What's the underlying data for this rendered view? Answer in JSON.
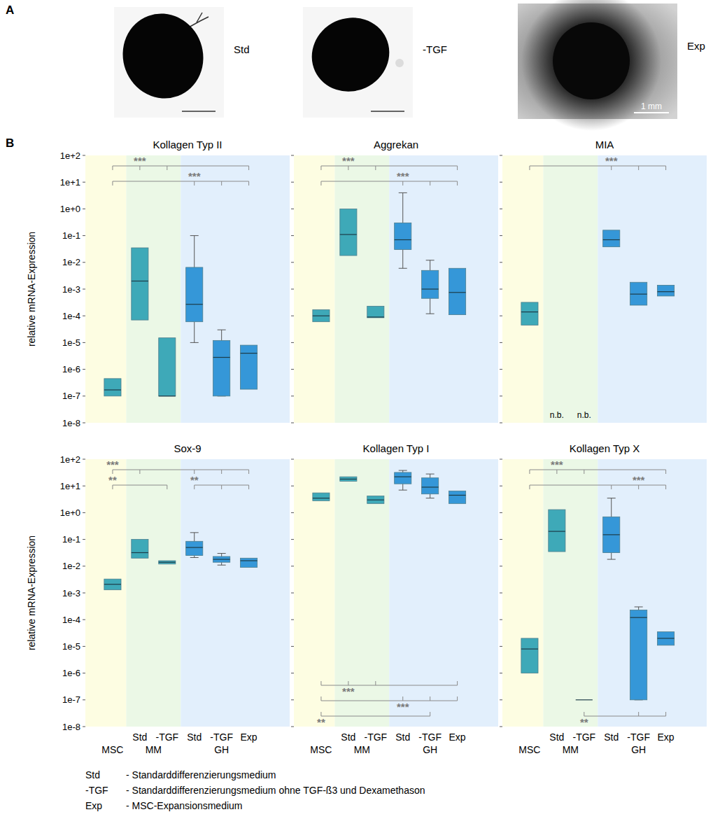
{
  "panel_a": {
    "label": "A",
    "images": [
      {
        "label": "Std"
      },
      {
        "label": "-TGF"
      },
      {
        "label": "Exp",
        "scale_bar": "1 mm"
      }
    ]
  },
  "panel_b_label": "B",
  "chart_data": [
    {
      "type": "box",
      "title": "Kollagen Typ II",
      "categories": [
        null,
        "Std",
        "-TGF",
        "Std",
        "-TGF",
        "Exp"
      ],
      "groups": [
        {
          "label": "MSC",
          "categories": [
            0
          ],
          "color": "#fdfde2"
        },
        {
          "label": "MM",
          "categories": [
            1,
            2
          ],
          "color": "#ebf8e6"
        },
        {
          "label": "GH",
          "categories": [
            3,
            4,
            5
          ],
          "color": "#e2effc"
        }
      ],
      "colors": [
        "#3ea9b8",
        "#3ea9b8",
        "#3ea9b8",
        "#3597d8",
        "#3597d8",
        "#3597d8"
      ],
      "boxes": [
        {
          "low": null,
          "q1": 1e-07,
          "median": 1.7e-07,
          "q3": 4.5e-07,
          "high": null
        },
        {
          "low": null,
          "q1": 7e-05,
          "median": 0.002,
          "q3": 0.035,
          "high": null
        },
        {
          "low": null,
          "q1": 1e-07,
          "median": 1e-07,
          "q3": 1.5e-05,
          "high": null
        },
        {
          "low": 1e-05,
          "q1": 6e-05,
          "median": 0.00027,
          "q3": 0.0065,
          "high": 0.1
        },
        {
          "low": 1e-07,
          "q1": 1e-07,
          "median": 2.8e-06,
          "q3": 1.2e-05,
          "high": 3e-05
        },
        {
          "low": null,
          "q1": 1.8e-07,
          "median": 4e-06,
          "q3": 8e-06,
          "high": null
        }
      ],
      "significance": [
        {
          "label": "***",
          "from": 0,
          "to": [
            1,
            2,
            5
          ],
          "label_at": 1,
          "side": "top"
        },
        {
          "label": "***",
          "from": 0,
          "to": [
            3,
            4,
            5
          ],
          "label_at": 3,
          "side": "top"
        }
      ],
      "log": "y",
      "grid": false,
      "tick_labels": "y",
      "ylabel": "relative mRNA-Expression",
      "ylim": [
        1e-08,
        100
      ],
      "yticks": [
        {
          "value": 1e-08,
          "label": "1e-8"
        },
        {
          "value": 1e-07,
          "label": "1e-7"
        },
        {
          "value": 1e-06,
          "label": "1e-6"
        },
        {
          "value": 1e-05,
          "label": "1e-5"
        },
        {
          "value": 0.0001,
          "label": "1e-4"
        },
        {
          "value": 0.001,
          "label": "1e-3"
        },
        {
          "value": 0.01,
          "label": "1e-2"
        },
        {
          "value": 0.1,
          "label": "1e-1"
        },
        {
          "value": 1,
          "label": "1e+0"
        },
        {
          "value": 10,
          "label": "1e+1"
        },
        {
          "value": 100,
          "label": "1e+2"
        }
      ]
    },
    {
      "type": "box",
      "title": "Aggrekan",
      "categories": [
        null,
        "Std",
        "-TGF",
        "Std",
        "-TGF",
        "Exp"
      ],
      "groups": [
        {
          "label": "MSC",
          "categories": [
            0
          ],
          "color": "#fdfde2"
        },
        {
          "label": "MM",
          "categories": [
            1,
            2
          ],
          "color": "#ebf8e6"
        },
        {
          "label": "GH",
          "categories": [
            3,
            4,
            5
          ],
          "color": "#e2effc"
        }
      ],
      "colors": [
        "#3ea9b8",
        "#3ea9b8",
        "#3ea9b8",
        "#3597d8",
        "#3597d8",
        "#3597d8"
      ],
      "boxes": [
        {
          "low": null,
          "q1": 6e-05,
          "median": 0.0001,
          "q3": 0.00017,
          "high": null
        },
        {
          "low": null,
          "q1": 0.018,
          "median": 0.11,
          "q3": 1,
          "high": null
        },
        {
          "low": null,
          "q1": 8.5e-05,
          "median": 9e-05,
          "q3": 0.00023,
          "high": null
        },
        {
          "low": 0.006,
          "q1": 0.03,
          "median": 0.07,
          "q3": 0.3,
          "high": 4
        },
        {
          "low": 0.00012,
          "q1": 0.00045,
          "median": 0.001,
          "q3": 0.005,
          "high": 0.012
        },
        {
          "low": null,
          "q1": 0.00011,
          "median": 0.00075,
          "q3": 0.006,
          "high": null
        }
      ],
      "significance": [
        {
          "label": "***",
          "from": 0,
          "to": [
            1,
            2,
            5
          ],
          "label_at": 1,
          "side": "top"
        },
        {
          "label": "***",
          "from": 0,
          "to": [
            3,
            4,
            5
          ],
          "label_at": 3,
          "side": "top"
        }
      ],
      "log": "y",
      "grid": false,
      "tick_labels": false,
      "ylim": [
        1e-08,
        100
      ],
      "yticks": [
        {
          "value": 1e-08,
          "label": "1e-8"
        },
        {
          "value": 1e-07,
          "label": "1e-7"
        },
        {
          "value": 1e-06,
          "label": "1e-6"
        },
        {
          "value": 1e-05,
          "label": "1e-5"
        },
        {
          "value": 0.0001,
          "label": "1e-4"
        },
        {
          "value": 0.001,
          "label": "1e-3"
        },
        {
          "value": 0.01,
          "label": "1e-2"
        },
        {
          "value": 0.1,
          "label": "1e-1"
        },
        {
          "value": 1,
          "label": "1e+0"
        },
        {
          "value": 10,
          "label": "1e+1"
        },
        {
          "value": 100,
          "label": "1e+2"
        }
      ]
    },
    {
      "type": "box",
      "title": "MIA",
      "categories": [
        null,
        "Std",
        "-TGF",
        "Std",
        "-TGF",
        "Exp"
      ],
      "groups": [
        {
          "label": "MSC",
          "categories": [
            0
          ],
          "color": "#fdfde2"
        },
        {
          "label": "MM",
          "categories": [
            1,
            2
          ],
          "color": "#ebf8e6"
        },
        {
          "label": "GH",
          "categories": [
            3,
            4,
            5
          ],
          "color": "#e2effc"
        }
      ],
      "colors": [
        "#3ea9b8",
        "#3ea9b8",
        "#3ea9b8",
        "#3597d8",
        "#3597d8",
        "#3597d8"
      ],
      "boxes": [
        {
          "low": null,
          "q1": 4.5e-05,
          "median": 0.00014,
          "q3": 0.00032,
          "high": null
        },
        null,
        null,
        {
          "low": null,
          "q1": 0.038,
          "median": 0.07,
          "q3": 0.16,
          "high": null
        },
        {
          "low": null,
          "q1": 0.00025,
          "median": 0.00065,
          "q3": 0.0018,
          "high": null
        },
        {
          "low": null,
          "q1": 0.00055,
          "median": 0.0008,
          "q3": 0.0014,
          "high": null
        }
      ],
      "null_label": "n.b.",
      "significance": [
        {
          "label": "***",
          "from": 0,
          "to": [
            3,
            4,
            5
          ],
          "label_at": 3,
          "side": "top"
        }
      ],
      "log": "y",
      "grid": false,
      "tick_labels": false,
      "ylim": [
        1e-08,
        100
      ],
      "yticks": [
        {
          "value": 1e-08,
          "label": "1e-8"
        },
        {
          "value": 1e-07,
          "label": "1e-7"
        },
        {
          "value": 1e-06,
          "label": "1e-6"
        },
        {
          "value": 1e-05,
          "label": "1e-5"
        },
        {
          "value": 0.0001,
          "label": "1e-4"
        },
        {
          "value": 0.001,
          "label": "1e-3"
        },
        {
          "value": 0.01,
          "label": "1e-2"
        },
        {
          "value": 0.1,
          "label": "1e-1"
        },
        {
          "value": 1,
          "label": "1e+0"
        },
        {
          "value": 10,
          "label": "1e+1"
        },
        {
          "value": 100,
          "label": "1e+2"
        }
      ]
    },
    {
      "type": "box",
      "title": "Sox-9",
      "categories": [
        null,
        "Std",
        "-TGF",
        "Std",
        "-TGF",
        "Exp"
      ],
      "groups": [
        {
          "label": "MSC",
          "categories": [
            0
          ],
          "color": "#fdfde2"
        },
        {
          "label": "MM",
          "categories": [
            1,
            2
          ],
          "color": "#ebf8e6"
        },
        {
          "label": "GH",
          "categories": [
            3,
            4,
            5
          ],
          "color": "#e2effc"
        }
      ],
      "colors": [
        "#3ea9b8",
        "#3ea9b8",
        "#3ea9b8",
        "#3597d8",
        "#3597d8",
        "#3597d8"
      ],
      "boxes": [
        {
          "low": null,
          "q1": 0.0013,
          "median": 0.0021,
          "q3": 0.0033,
          "high": null
        },
        {
          "low": null,
          "q1": 0.02,
          "median": 0.032,
          "q3": 0.1,
          "high": null
        },
        {
          "low": null,
          "q1": 0.012,
          "median": 0.014,
          "q3": 0.016,
          "high": null
        },
        {
          "low": 0.021,
          "q1": 0.025,
          "median": 0.05,
          "q3": 0.085,
          "high": 0.18
        },
        {
          "low": 0.011,
          "q1": 0.014,
          "median": 0.018,
          "q3": 0.023,
          "high": 0.03
        },
        {
          "low": null,
          "q1": 0.009,
          "median": 0.016,
          "q3": 0.02,
          "high": null
        }
      ],
      "significance": [
        {
          "label": "***",
          "from": 0,
          "to": [
            1,
            3,
            4,
            5
          ],
          "label_at": 0,
          "side": "top"
        },
        {
          "label": "**",
          "from": 0,
          "to": [
            2
          ],
          "label_at": 0,
          "side": "top"
        },
        {
          "label": "**",
          "from": 3,
          "to": [
            4,
            5
          ],
          "label_at": 3,
          "side": "top"
        }
      ],
      "log": "y",
      "grid": false,
      "tick_labels": true,
      "ylabel": "relative mRNA-Expression",
      "ylim": [
        1e-08,
        100
      ],
      "yticks": [
        {
          "value": 1e-08,
          "label": "1e-8"
        },
        {
          "value": 1e-07,
          "label": "1e-7"
        },
        {
          "value": 1e-06,
          "label": "1e-6"
        },
        {
          "value": 1e-05,
          "label": "1e-5"
        },
        {
          "value": 0.0001,
          "label": "1e-4"
        },
        {
          "value": 0.001,
          "label": "1e-3"
        },
        {
          "value": 0.01,
          "label": "1e-2"
        },
        {
          "value": 0.1,
          "label": "1e-1"
        },
        {
          "value": 1,
          "label": "1e+0"
        },
        {
          "value": 10,
          "label": "1e+1"
        },
        {
          "value": 100,
          "label": "1e+2"
        }
      ]
    },
    {
      "type": "box",
      "title": "Kollagen Typ I",
      "categories": [
        null,
        "Std",
        "-TGF",
        "Std",
        "-TGF",
        "Exp"
      ],
      "groups": [
        {
          "label": "MSC",
          "categories": [
            0
          ],
          "color": "#fdfde2"
        },
        {
          "label": "MM",
          "categories": [
            1,
            2
          ],
          "color": "#ebf8e6"
        },
        {
          "label": "GH",
          "categories": [
            3,
            4,
            5
          ],
          "color": "#e2effc"
        }
      ],
      "colors": [
        "#3ea9b8",
        "#3ea9b8",
        "#3ea9b8",
        "#3597d8",
        "#3597d8",
        "#3597d8"
      ],
      "boxes": [
        {
          "low": null,
          "q1": 2.8,
          "median": 3.5,
          "q3": 5.5,
          "high": null
        },
        {
          "low": null,
          "q1": 15,
          "median": 18,
          "q3": 22,
          "high": null
        },
        {
          "low": null,
          "q1": 2.2,
          "median": 3,
          "q3": 4.2,
          "high": null
        },
        {
          "low": 7,
          "q1": 12,
          "median": 22,
          "q3": 32,
          "high": 38
        },
        {
          "low": 3.5,
          "q1": 5,
          "median": 9,
          "q3": 20,
          "high": 28
        },
        {
          "low": null,
          "q1": 2.2,
          "median": 4.5,
          "q3": 6.5,
          "high": null
        }
      ],
      "significance": [
        {
          "label": "***",
          "from": 0,
          "to": [
            1,
            2,
            5
          ],
          "label_at": 1,
          "side": "bottom"
        },
        {
          "label": "***",
          "from": 0,
          "to": [
            3,
            4,
            5
          ],
          "label_at": 3,
          "side": "bottom"
        },
        {
          "label": "**",
          "from": 0,
          "to": [
            4
          ],
          "label_at": 0,
          "side": "bottom"
        }
      ],
      "log": "y",
      "grid": false,
      "tick_labels": "x",
      "ylim": [
        1e-08,
        100
      ],
      "yticks": [
        {
          "value": 1e-08,
          "label": "1e-8"
        },
        {
          "value": 1e-07,
          "label": "1e-7"
        },
        {
          "value": 1e-06,
          "label": "1e-6"
        },
        {
          "value": 1e-05,
          "label": "1e-5"
        },
        {
          "value": 0.0001,
          "label": "1e-4"
        },
        {
          "value": 0.001,
          "label": "1e-3"
        },
        {
          "value": 0.01,
          "label": "1e-2"
        },
        {
          "value": 0.1,
          "label": "1e-1"
        },
        {
          "value": 1,
          "label": "1e+0"
        },
        {
          "value": 10,
          "label": "1e+1"
        },
        {
          "value": 100,
          "label": "1e+2"
        }
      ]
    },
    {
      "type": "box",
      "title": "Kollagen Typ X",
      "categories": [
        null,
        "Std",
        "-TGF",
        "Std",
        "-TGF",
        "Exp"
      ],
      "groups": [
        {
          "label": "MSC",
          "categories": [
            0
          ],
          "color": "#fdfde2"
        },
        {
          "label": "MM",
          "categories": [
            1,
            2
          ],
          "color": "#ebf8e6"
        },
        {
          "label": "GH",
          "categories": [
            3,
            4,
            5
          ],
          "color": "#e2effc"
        }
      ],
      "colors": [
        "#3ea9b8",
        "#3ea9b8",
        "#3ea9b8",
        "#3597d8",
        "#3597d8",
        "#3597d8"
      ],
      "boxes": [
        {
          "low": null,
          "q1": 1e-06,
          "median": 8e-06,
          "q3": 2e-05,
          "high": null
        },
        {
          "low": null,
          "q1": 0.035,
          "median": 0.2,
          "q3": 1.3,
          "high": null
        },
        {
          "low": null,
          "q1": 1e-07,
          "median": 1e-07,
          "q3": 1e-07,
          "high": null
        },
        {
          "low": 0.018,
          "q1": 0.032,
          "median": 0.15,
          "q3": 0.7,
          "high": 3.5
        },
        {
          "low": 1e-07,
          "q1": 1e-07,
          "median": 0.00012,
          "q3": 0.00023,
          "high": 0.0003
        },
        {
          "low": null,
          "q1": 1.1e-05,
          "median": 2e-05,
          "q3": 3.5e-05,
          "high": null
        }
      ],
      "significance": [
        {
          "label": "***",
          "from": 0,
          "to": [
            1,
            2,
            5
          ],
          "label_at": 1,
          "side": "top"
        },
        {
          "label": "***",
          "from": 0,
          "to": [
            3,
            4,
            5
          ],
          "label_at": 4,
          "side": "top"
        },
        {
          "label": "**",
          "from": 2,
          "to": [
            4,
            5
          ],
          "label_at": 2,
          "side": "bottom"
        }
      ],
      "log": "y",
      "grid": false,
      "tick_labels": "x",
      "ylim": [
        1e-08,
        100
      ],
      "yticks": [
        {
          "value": 1e-08,
          "label": "1e-8"
        },
        {
          "value": 1e-07,
          "label": "1e-7"
        },
        {
          "value": 1e-06,
          "label": "1e-6"
        },
        {
          "value": 1e-05,
          "label": "1e-5"
        },
        {
          "value": 0.0001,
          "label": "1e-4"
        },
        {
          "value": 0.001,
          "label": "1e-3"
        },
        {
          "value": 0.01,
          "label": "1e-2"
        },
        {
          "value": 0.1,
          "label": "1e-1"
        },
        {
          "value": 1,
          "label": "1e+0"
        },
        {
          "value": 10,
          "label": "1e+1"
        },
        {
          "value": 100,
          "label": "1e+2"
        }
      ]
    }
  ],
  "notes": [
    {
      "term": "Std",
      "text": "- Standarddifferenzierungsmedium"
    },
    {
      "term": "-TGF",
      "text": "- Standarddifferenzierungsmedium ohne TGF-ß3 und Dexamethason"
    },
    {
      "term": "Exp",
      "text": "- MSC-Expansionsmedium"
    }
  ]
}
